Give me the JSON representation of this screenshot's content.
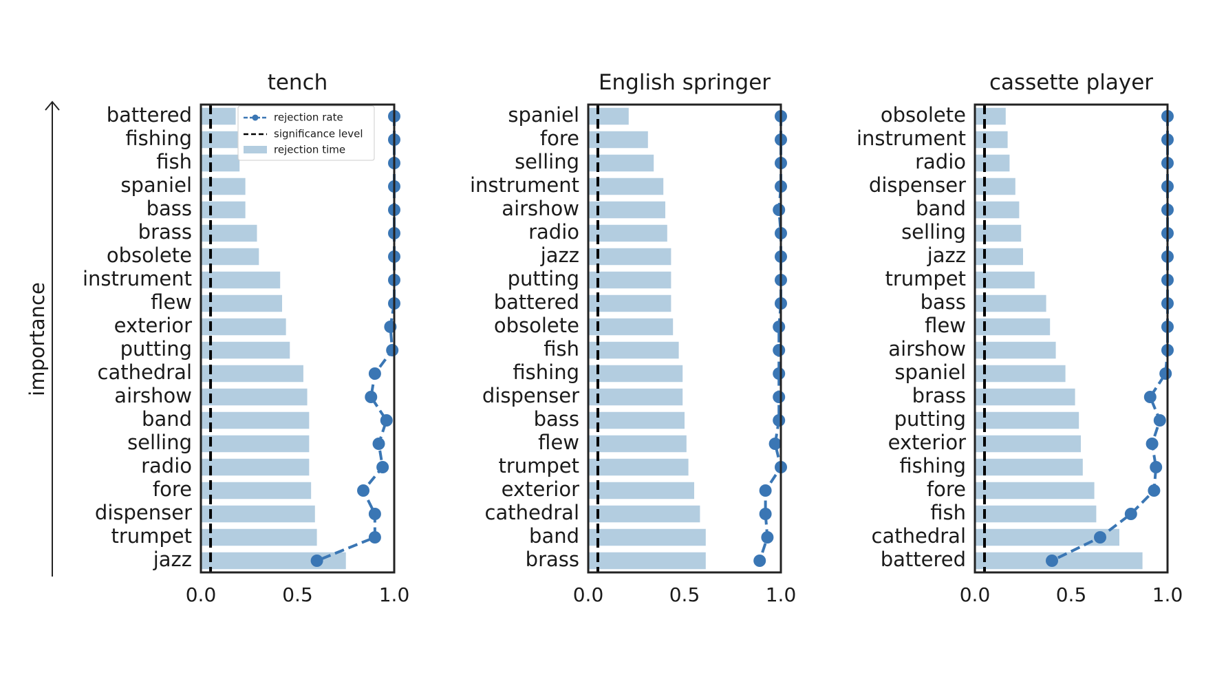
{
  "figure": {
    "ylabel": "importance",
    "legend": {
      "placement": "top-right of first panel",
      "rejection_rate": "rejection rate",
      "significance_level": "significance level",
      "rejection_time": "rejection time"
    }
  },
  "colors": {
    "bar": "#b3cde0",
    "line": "#3a76b4",
    "significance": "#000000",
    "axes": "#222222"
  },
  "chart_data": [
    {
      "type": "bar",
      "title": "tench",
      "xlim": [
        0,
        1
      ],
      "xticks": [
        "0.0",
        "0.5",
        "1.0"
      ],
      "significance_level": 0.05,
      "categories": [
        "battered",
        "fishing",
        "fish",
        "spaniel",
        "bass",
        "brass",
        "obsolete",
        "instrument",
        "flew",
        "exterior",
        "putting",
        "cathedral",
        "airshow",
        "band",
        "selling",
        "radio",
        "fore",
        "dispenser",
        "trumpet",
        "jazz"
      ],
      "series": [
        {
          "name": "rejection time",
          "type": "bar",
          "values": [
            0.18,
            0.19,
            0.2,
            0.23,
            0.23,
            0.29,
            0.3,
            0.41,
            0.42,
            0.44,
            0.46,
            0.53,
            0.55,
            0.56,
            0.56,
            0.56,
            0.57,
            0.59,
            0.6,
            0.75
          ]
        },
        {
          "name": "rejection rate",
          "type": "line",
          "values": [
            1.0,
            1.0,
            1.0,
            1.0,
            1.0,
            1.0,
            1.0,
            1.0,
            1.0,
            0.98,
            0.99,
            0.9,
            0.88,
            0.96,
            0.92,
            0.94,
            0.84,
            0.9,
            0.9,
            0.6
          ]
        }
      ]
    },
    {
      "type": "bar",
      "title": "English springer",
      "xlim": [
        0,
        1
      ],
      "xticks": [
        "0.0",
        "0.5",
        "1.0"
      ],
      "significance_level": 0.05,
      "categories": [
        "spaniel",
        "fore",
        "selling",
        "instrument",
        "airshow",
        "radio",
        "jazz",
        "putting",
        "battered",
        "obsolete",
        "fish",
        "fishing",
        "dispenser",
        "bass",
        "flew",
        "trumpet",
        "exterior",
        "cathedral",
        "band",
        "brass"
      ],
      "series": [
        {
          "name": "rejection time",
          "type": "bar",
          "values": [
            0.21,
            0.31,
            0.34,
            0.39,
            0.4,
            0.41,
            0.43,
            0.43,
            0.43,
            0.44,
            0.47,
            0.49,
            0.49,
            0.5,
            0.51,
            0.52,
            0.55,
            0.58,
            0.61,
            0.61
          ]
        },
        {
          "name": "rejection rate",
          "type": "line",
          "values": [
            1.0,
            1.0,
            1.0,
            1.0,
            0.99,
            1.0,
            1.0,
            1.0,
            1.0,
            0.99,
            0.99,
            0.99,
            0.99,
            0.99,
            0.97,
            1.0,
            0.92,
            0.92,
            0.93,
            0.89
          ]
        }
      ]
    },
    {
      "type": "bar",
      "title": "cassette player",
      "xlim": [
        0,
        1
      ],
      "xticks": [
        "0.0",
        "0.5",
        "1.0"
      ],
      "significance_level": 0.05,
      "categories": [
        "obsolete",
        "instrument",
        "radio",
        "dispenser",
        "band",
        "selling",
        "jazz",
        "trumpet",
        "bass",
        "flew",
        "airshow",
        "spaniel",
        "brass",
        "putting",
        "exterior",
        "fishing",
        "fore",
        "fish",
        "cathedral",
        "battered"
      ],
      "series": [
        {
          "name": "rejection time",
          "type": "bar",
          "values": [
            0.16,
            0.17,
            0.18,
            0.21,
            0.23,
            0.24,
            0.25,
            0.31,
            0.37,
            0.39,
            0.42,
            0.47,
            0.52,
            0.54,
            0.55,
            0.56,
            0.62,
            0.63,
            0.75,
            0.87
          ]
        },
        {
          "name": "rejection rate",
          "type": "line",
          "values": [
            1.0,
            1.0,
            1.0,
            1.0,
            1.0,
            1.0,
            1.0,
            1.0,
            1.0,
            1.0,
            1.0,
            0.99,
            0.91,
            0.96,
            0.92,
            0.94,
            0.93,
            0.81,
            0.65,
            0.4
          ]
        }
      ]
    }
  ]
}
